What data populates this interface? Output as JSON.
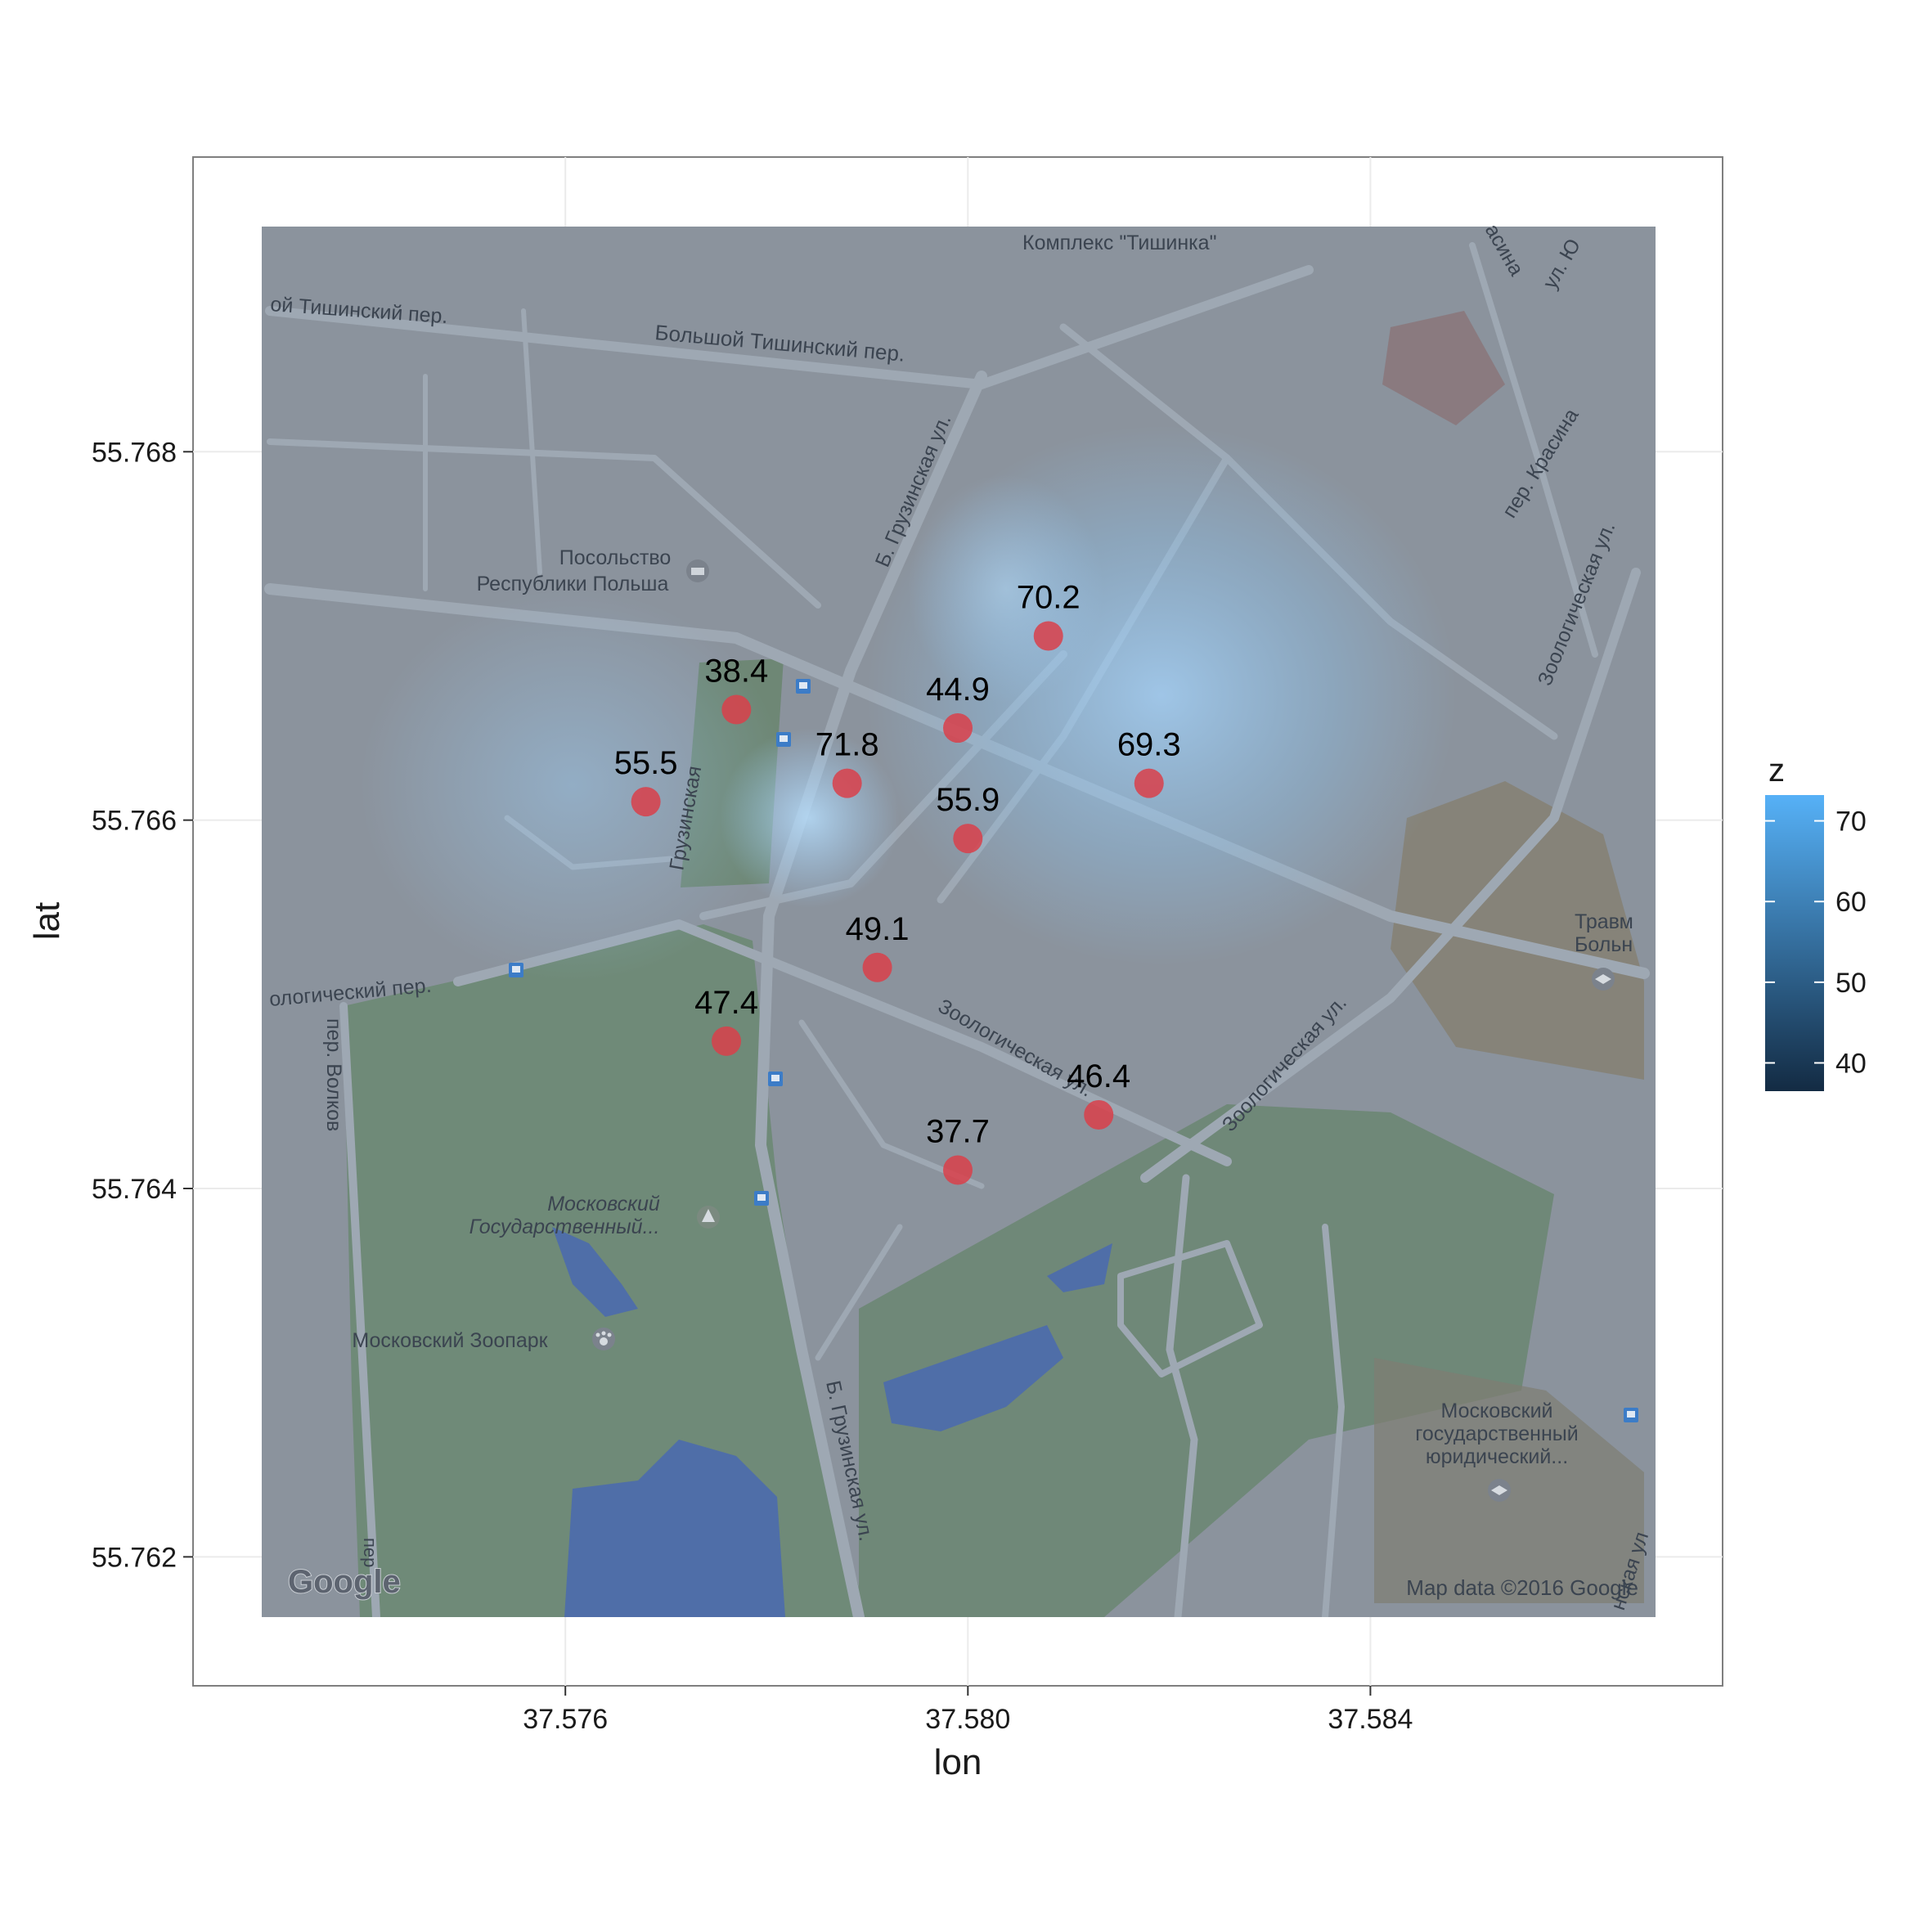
{
  "chart_data": {
    "type": "scatter",
    "xlabel": "lon",
    "ylabel": "lat",
    "xlim": [
      37.5723,
      37.5875
    ],
    "ylim": [
      55.7613,
      55.7696
    ],
    "x_ticks": [
      37.576,
      37.58,
      37.584
    ],
    "x_tick_labels": [
      "37.576",
      "37.580",
      "37.584"
    ],
    "y_ticks": [
      55.762,
      55.764,
      55.766,
      55.768
    ],
    "y_tick_labels": [
      "55.762",
      "55.764",
      "55.766",
      "55.768"
    ],
    "grid": true,
    "map_extent": {
      "lon": [
        37.573,
        37.587
      ],
      "lat": [
        55.7617,
        55.7696
      ]
    },
    "point_color": "#d9404a",
    "points": [
      {
        "lon": 37.5808,
        "lat": 55.767,
        "z": 70.2,
        "label": "70.2"
      },
      {
        "lon": 37.5777,
        "lat": 55.7666,
        "z": 38.4,
        "label": "38.4"
      },
      {
        "lon": 37.5799,
        "lat": 55.7665,
        "z": 44.9,
        "label": "44.9"
      },
      {
        "lon": 37.5768,
        "lat": 55.7661,
        "z": 55.5,
        "label": "55.5"
      },
      {
        "lon": 37.5788,
        "lat": 55.7662,
        "z": 71.8,
        "label": "71.8"
      },
      {
        "lon": 37.5818,
        "lat": 55.7662,
        "z": 69.3,
        "label": "69.3"
      },
      {
        "lon": 37.58,
        "lat": 55.7659,
        "z": 55.9,
        "label": "55.9"
      },
      {
        "lon": 37.5791,
        "lat": 55.7652,
        "z": 49.1,
        "label": "49.1"
      },
      {
        "lon": 37.5776,
        "lat": 55.7648,
        "z": 47.4,
        "label": "47.4"
      },
      {
        "lon": 37.5813,
        "lat": 55.7644,
        "z": 46.4,
        "label": "46.4"
      },
      {
        "lon": 37.5799,
        "lat": 55.7641,
        "z": 37.7,
        "label": "37.7"
      }
    ],
    "legend": {
      "title": "z",
      "position": "right",
      "ticks": [
        40,
        50,
        60,
        70
      ],
      "tick_labels": [
        "40",
        "50",
        "60",
        "70"
      ],
      "range": [
        36.5,
        73.2
      ],
      "color_low": "#132b43",
      "color_high": "#56b1f7"
    }
  },
  "map": {
    "attribution": "Map data ©2016 Google",
    "logo": "Google",
    "labels": [
      {
        "text": "Комплекс \"Тишинка\""
      },
      {
        "text": "ой Тишинский пер."
      },
      {
        "text": "Большой Тишинский пер."
      },
      {
        "text": "Посольство"
      },
      {
        "text": "Республики Польша"
      },
      {
        "text": "Б. Грузинская ул."
      },
      {
        "text": "Грузинская"
      },
      {
        "text": "пер. Красина"
      },
      {
        "text": "Зоологическая ул."
      },
      {
        "text": "асина"
      },
      {
        "text": "ул. Ю"
      },
      {
        "text": "ологический пер."
      },
      {
        "text": "пер. Волков"
      },
      {
        "text": "Зоологическая ул."
      },
      {
        "text": "Зоологическая ул."
      },
      {
        "text": "Травм"
      },
      {
        "text": "Больн"
      },
      {
        "text": "Московский"
      },
      {
        "text": "Государственный..."
      },
      {
        "text": "Московский Зоопарк"
      },
      {
        "text": "Б. Грузинская ул."
      },
      {
        "text": "Московский"
      },
      {
        "text": "государственный"
      },
      {
        "text": "юридический..."
      },
      {
        "text": "нская ул"
      },
      {
        "text": "пер"
      }
    ]
  }
}
